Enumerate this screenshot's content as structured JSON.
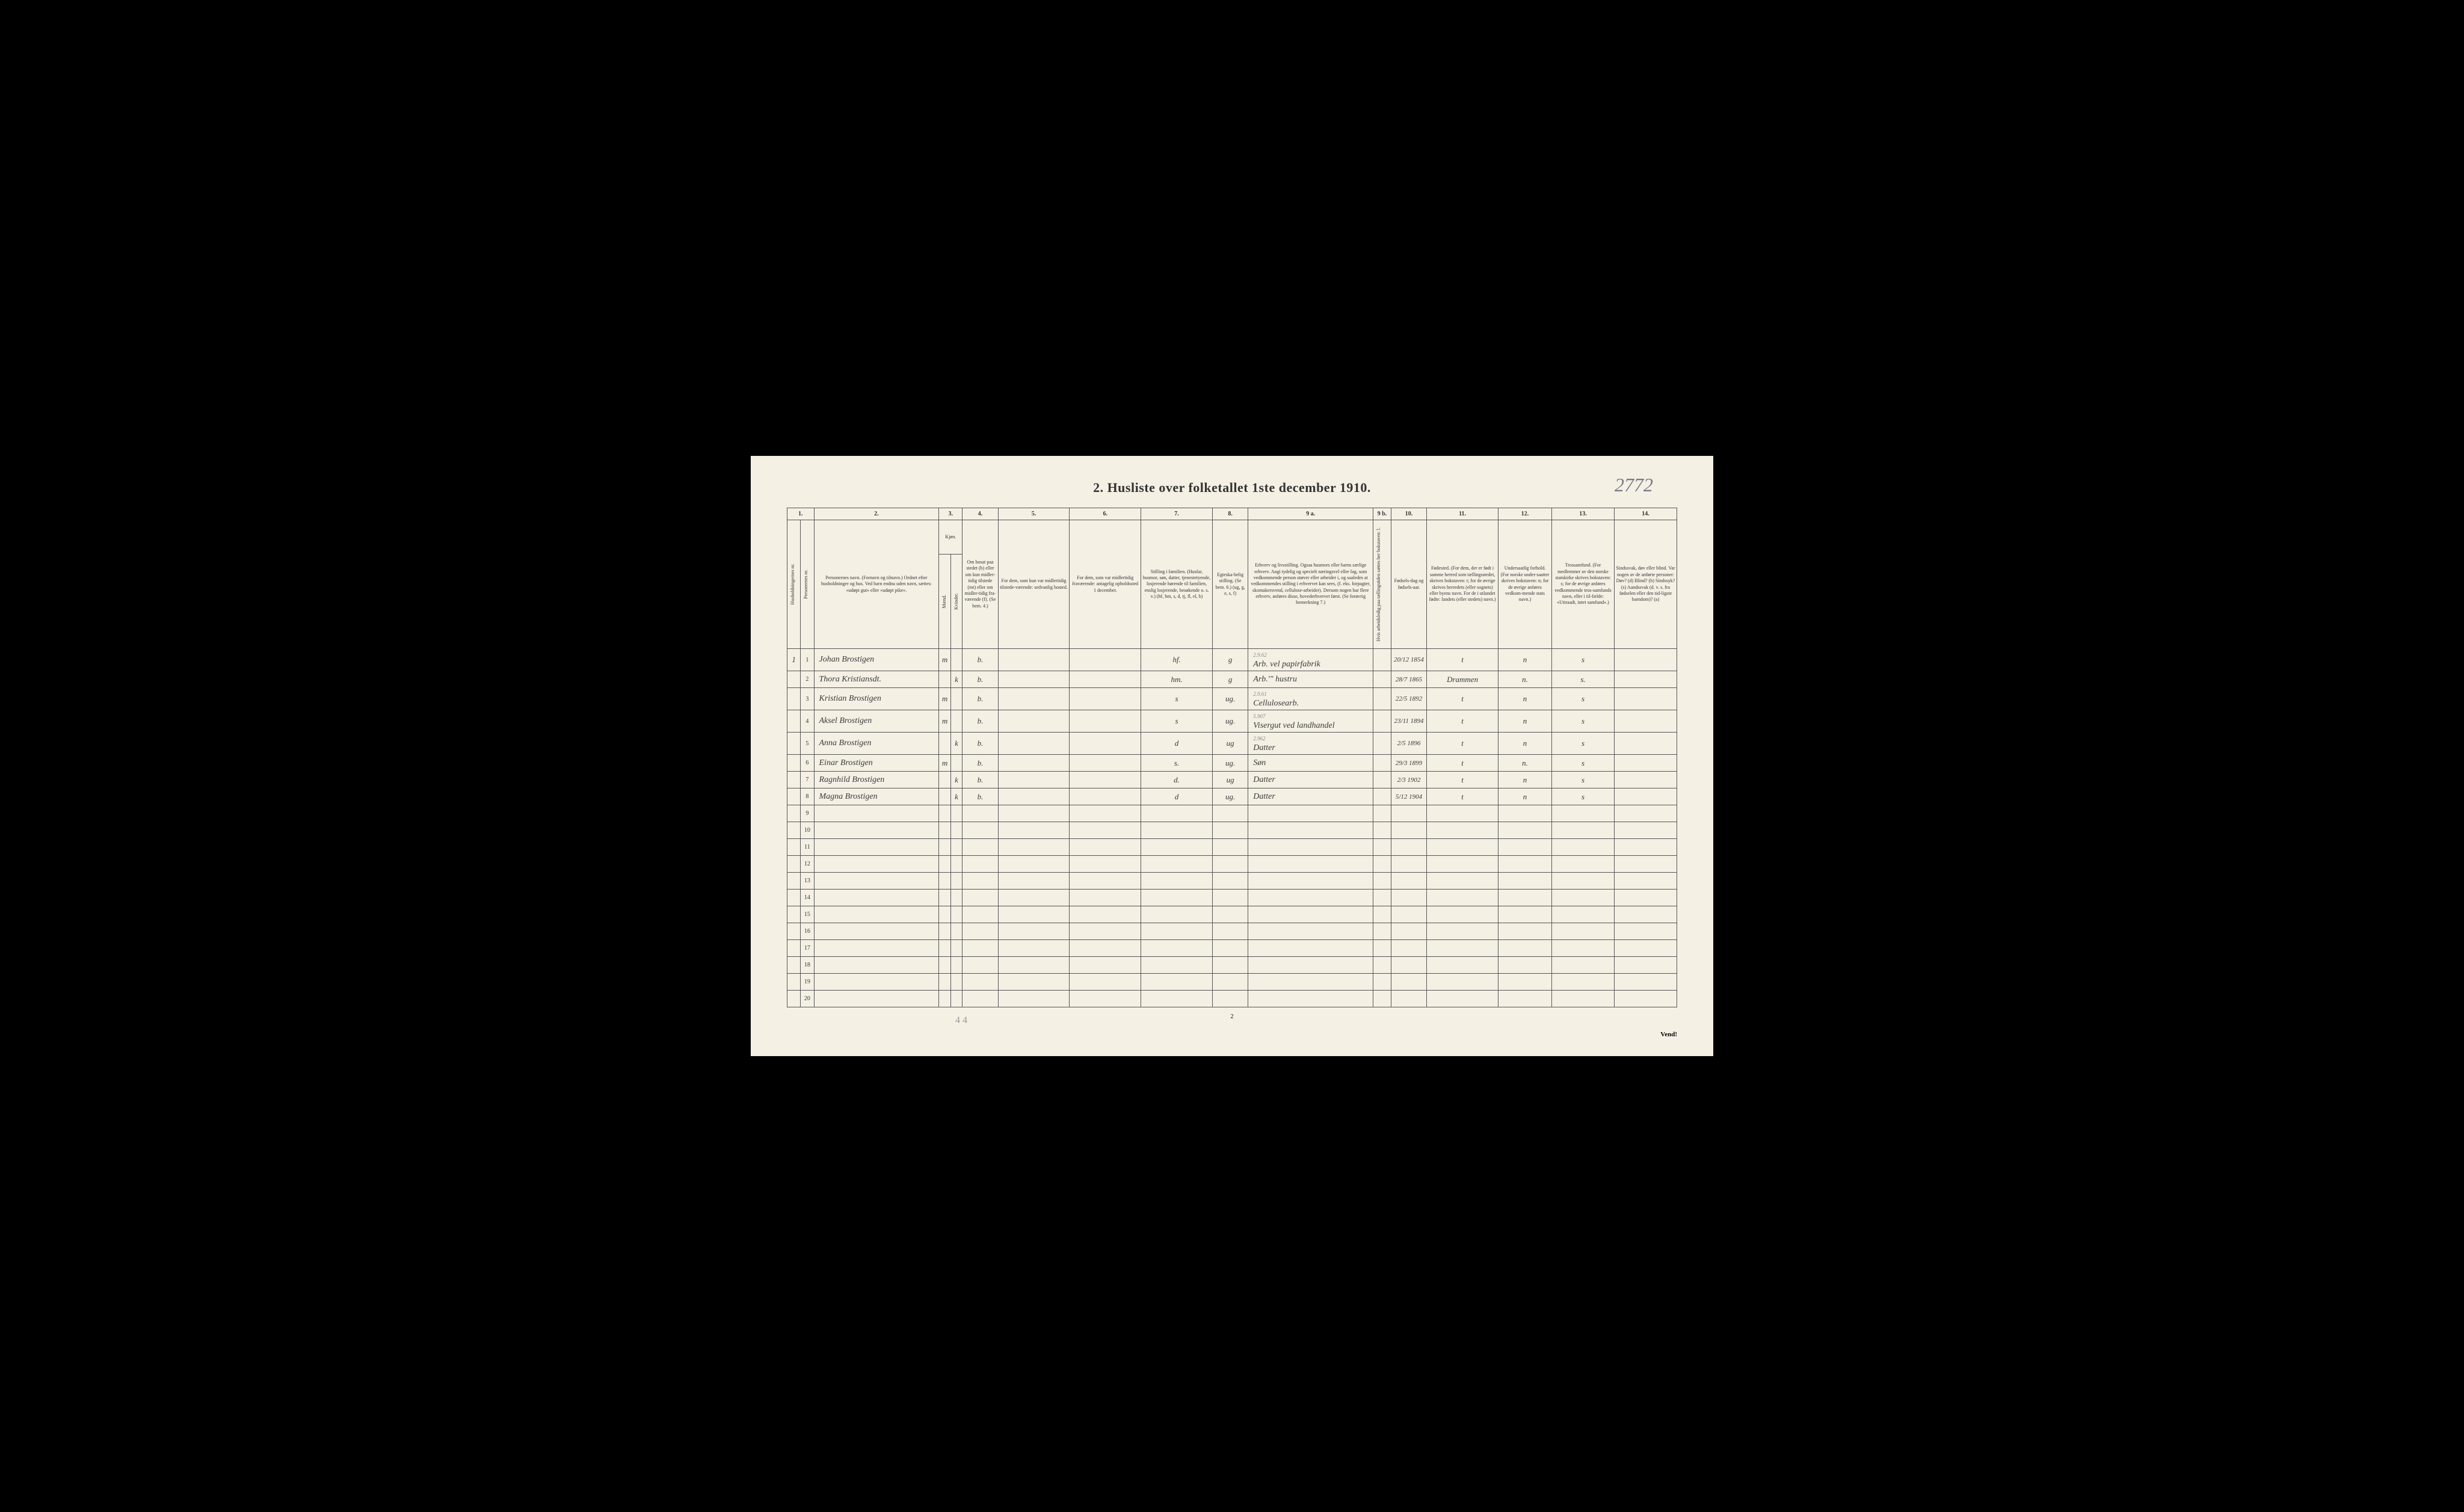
{
  "handwritten_corner": "2772",
  "title": "2. Husliste over folketallet 1ste december 1910.",
  "footer_page": "2",
  "vend_text": "Vend!",
  "pencil_bottom": "4 4",
  "column_numbers": [
    "1.",
    "2.",
    "3.",
    "4.",
    "5.",
    "6.",
    "7.",
    "8.",
    "9 a.",
    "9 b.",
    "10.",
    "11.",
    "12.",
    "13.",
    "14."
  ],
  "headers": {
    "col1_rot1": "Husholdningernes nr.",
    "col1_rot2": "Personernes nr.",
    "col2": "Personernes navn.\n(Fornavn og tilnavn.)\nOrdnet efter husholdninger og hus.\nVed barn endnu uden navn, sættes: «udøpt gut» eller «udøpt pike».",
    "col3_top": "Kjøn.",
    "col3_rot_m": "Mænd.",
    "col3_rot_k": "Kvinder.",
    "col3_bot": "m. k.",
    "col4": "Om bosat paa stedet (b) eller om kun midler-tidig tilstede (mt) eller om midler-tidig fra-værende (f). (Se bem. 4.)",
    "col5": "For dem, som kun var midlertidig tilstede-værende:\nsedvanlig bosted.",
    "col6": "For dem, som var midlertidig fraværende:\nantagelig opholdssted 1 december.",
    "col7": "Stilling i familien.\n(Husfar, husmor, søn, datter, tjenestetyende, losjerende hørende til familien, enslig losjerende, besøkende o. s. v.)\n(hf, hm, s, d, tj, fl, el, b)",
    "col8": "Egteska-belig stilling.\n(Se bem. 6.)\n(ug, g, e, s, f)",
    "col9a": "Erhverv og livsstilling.\nOgsaa husmors eller barns særlige erhverv. Angi tydelig og specielt næringsvel eller fag, som vedkommende person utøver eller arbeider i, og saaledes at vedkommendes stilling i erhvervet kan sees, (f. eks. forpagter, skomakersvend, cellulose-arbeider). Dersom nogen har flere erhverv, anføres disse, hovederhvervet først.\n(Se forøvrig bemerkning 7.)",
    "col9b_rot": "Hvis arbeidsledig paa tællingstiden sættes her bokstaven: l.",
    "col10": "Fødsels-dag og fødsels-aar.",
    "col11": "Fødested.\n(For dem, der er født i samme herred som tællingsstedet, skrives bokstaven: t; for de øvrige skrives herredets (eller sognets) eller byens navn. For de i utlandet fødte: landets (eller stedets) navn.)",
    "col12": "Undersaatlig forhold.\n(For norske under-saatter skrives bokstaven: n; for de øvrige anføres vedkom-mende stats navn.)",
    "col13": "Trossamfund.\n(For medlemmer av den norske statskirke skrives bokstaven: s; for de øvrige anføres vedkommende tros-samfunds navn, eller i til-fælde: «Uttraadt, intet samfund».)",
    "col14": "Sindssvak, døv eller blind.\nVar nogen av de anførte personer:\nDøv? (d)\nBlind? (b)\nSindssyk? (s)\nAandssvak (d. v. s. fra fødselen eller den tid-ligste barndom)? (a)"
  },
  "rows": [
    {
      "hnum": "1",
      "pnum": "1",
      "name": "Johan Brostigen",
      "m": "m",
      "k": "",
      "bosat": "b.",
      "col5": "",
      "col6": "",
      "fam": "hf.",
      "egte": "g",
      "erhverv": "Arb. vel papirfabrik",
      "note9": "2.9.62",
      "col9b": "",
      "fdato": "20/12 1854",
      "fsted": "t",
      "forhold": "n",
      "tros": "s",
      "col14": ""
    },
    {
      "hnum": "",
      "pnum": "2",
      "name": "Thora Kristiansdt.",
      "m": "",
      "k": "k",
      "bosat": "b.",
      "col5": "",
      "col6": "",
      "fam": "hm.",
      "egte": "g",
      "erhverv": "Arb.'\" hustru",
      "note9": "",
      "col9b": "",
      "fdato": "28/7 1865",
      "fsted": "Drammen",
      "forhold": "n.",
      "tros": "s.",
      "col14": ""
    },
    {
      "hnum": "",
      "pnum": "3",
      "name": "Kristian Brostigen",
      "m": "m",
      "k": "",
      "bosat": "b.",
      "col5": "",
      "col6": "",
      "fam": "s",
      "egte": "ug.",
      "erhverv": "Cellulosearb.",
      "note9": "2.9.61",
      "col9b": "",
      "fdato": "22/5 1892",
      "fsted": "t",
      "forhold": "n",
      "tros": "s",
      "col14": ""
    },
    {
      "hnum": "",
      "pnum": "4",
      "name": "Aksel Brostigen",
      "m": "m",
      "k": "",
      "bosat": "b.",
      "col5": "",
      "col6": "",
      "fam": "s",
      "egte": "ug.",
      "erhverv": "Visergut ved landhandel",
      "note9": "5.907",
      "col9b": "",
      "fdato": "23/11 1894",
      "fsted": "t",
      "forhold": "n",
      "tros": "s",
      "col14": ""
    },
    {
      "hnum": "",
      "pnum": "5",
      "name": "Anna Brostigen",
      "m": "",
      "k": "k",
      "bosat": "b.",
      "col5": "",
      "col6": "",
      "fam": "d",
      "egte": "ug",
      "erhverv": "Datter",
      "note9": "2.962",
      "col9b": "",
      "fdato": "2/5 1896",
      "fsted": "t",
      "forhold": "n",
      "tros": "s",
      "col14": ""
    },
    {
      "hnum": "",
      "pnum": "6",
      "name": "Einar Brostigen",
      "m": "m",
      "k": "",
      "bosat": "b.",
      "col5": "",
      "col6": "",
      "fam": "s.",
      "egte": "ug.",
      "erhverv": "Søn",
      "note9": "",
      "col9b": "",
      "fdato": "29/3 1899",
      "fsted": "t",
      "forhold": "n.",
      "tros": "s",
      "col14": ""
    },
    {
      "hnum": "",
      "pnum": "7",
      "name": "Ragnhild Brostigen",
      "m": "",
      "k": "k",
      "bosat": "b.",
      "col5": "",
      "col6": "",
      "fam": "d.",
      "egte": "ug",
      "erhverv": "Datter",
      "note9": "",
      "col9b": "",
      "fdato": "2/3 1902",
      "fsted": "t",
      "forhold": "n",
      "tros": "s",
      "col14": ""
    },
    {
      "hnum": "",
      "pnum": "8",
      "name": "Magna Brostigen",
      "m": "",
      "k": "k",
      "bosat": "b.",
      "col5": "",
      "col6": "",
      "fam": "d",
      "egte": "ug.",
      "erhverv": "Datter",
      "note9": "",
      "col9b": "",
      "fdato": "5/12 1904",
      "fsted": "t",
      "forhold": "n",
      "tros": "s",
      "col14": ""
    }
  ],
  "empty_rows": [
    9,
    10,
    11,
    12,
    13,
    14,
    15,
    16,
    17,
    18,
    19,
    20
  ]
}
